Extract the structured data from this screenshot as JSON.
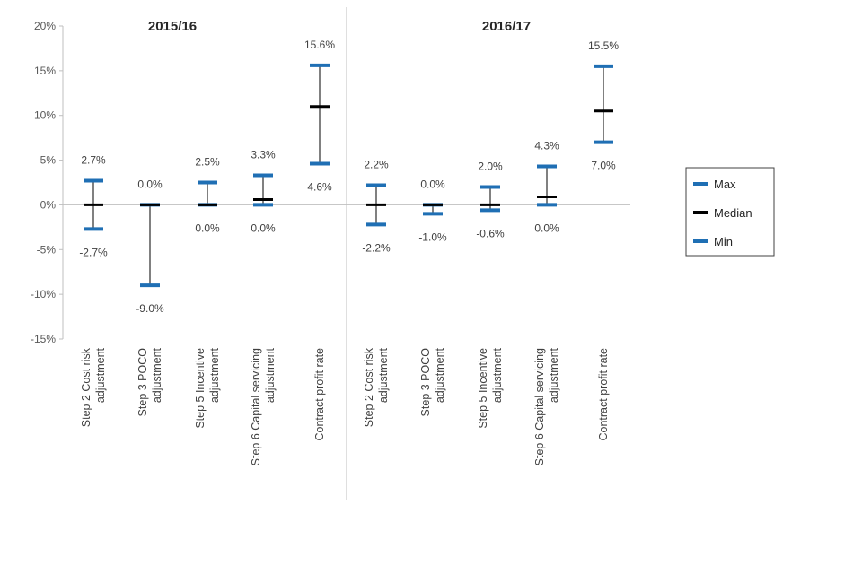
{
  "chart_data": {
    "type": "error-bar",
    "ylim": [
      -15,
      20
    ],
    "yticks": [
      -15,
      -10,
      -5,
      0,
      5,
      10,
      15,
      20
    ],
    "ytick_labels": [
      "-15%",
      "-10%",
      "-5%",
      "0%",
      "5%",
      "10%",
      "15%",
      "20%"
    ],
    "grid": false,
    "legend_position": "right",
    "legend": [
      {
        "key": "max",
        "label": "Max"
      },
      {
        "key": "median",
        "label": "Median"
      },
      {
        "key": "min",
        "label": "Min"
      }
    ],
    "colors": {
      "max": "#1f6fb4",
      "median": "#000000",
      "min": "#1f6fb4",
      "stem": "#000000"
    },
    "panels": [
      {
        "title": "2015/16",
        "categories": [
          {
            "label": [
              "Step 2 Cost risk",
              "adjustment"
            ],
            "max": 2.7,
            "median": 0.0,
            "min": -2.7,
            "max_label": "2.7%",
            "min_label": "-2.7%"
          },
          {
            "label": [
              "Step 3 POCO",
              "adjustment"
            ],
            "max": 0.0,
            "median": 0.0,
            "min": -9.0,
            "max_label": "0.0%",
            "min_label": "-9.0%"
          },
          {
            "label": [
              "Step 5 Incentive",
              "adjustment"
            ],
            "max": 2.5,
            "median": 0.0,
            "min": 0.0,
            "max_label": "2.5%",
            "min_label": "0.0%"
          },
          {
            "label": [
              "Step 6 Capital servicing",
              "adjustment"
            ],
            "max": 3.3,
            "median": 0.6,
            "min": 0.0,
            "max_label": "3.3%",
            "min_label": "0.0%"
          },
          {
            "label": [
              "Contract profit rate"
            ],
            "max": 15.6,
            "median": 11.0,
            "min": 4.6,
            "max_label": "15.6%",
            "min_label": "4.6%"
          }
        ]
      },
      {
        "title": "2016/17",
        "categories": [
          {
            "label": [
              "Step 2 Cost risk",
              "adjustment"
            ],
            "max": 2.2,
            "median": 0.0,
            "min": -2.2,
            "max_label": "2.2%",
            "min_label": "-2.2%"
          },
          {
            "label": [
              "Step 3 POCO",
              "adjustment"
            ],
            "max": 0.0,
            "median": 0.0,
            "min": -1.0,
            "max_label": "0.0%",
            "min_label": "-1.0%"
          },
          {
            "label": [
              "Step 5 Incentive",
              "adjustment"
            ],
            "max": 2.0,
            "median": 0.0,
            "min": -0.6,
            "max_label": "2.0%",
            "min_label": "-0.6%"
          },
          {
            "label": [
              "Step 6 Capital servicing",
              "adjustment"
            ],
            "max": 4.3,
            "median": 0.9,
            "min": 0.0,
            "max_label": "4.3%",
            "min_label": "0.0%"
          },
          {
            "label": [
              "Contract profit rate"
            ],
            "max": 15.5,
            "median": 10.5,
            "min": 7.0,
            "max_label": "15.5%",
            "min_label": "7.0%"
          }
        ]
      }
    ]
  }
}
